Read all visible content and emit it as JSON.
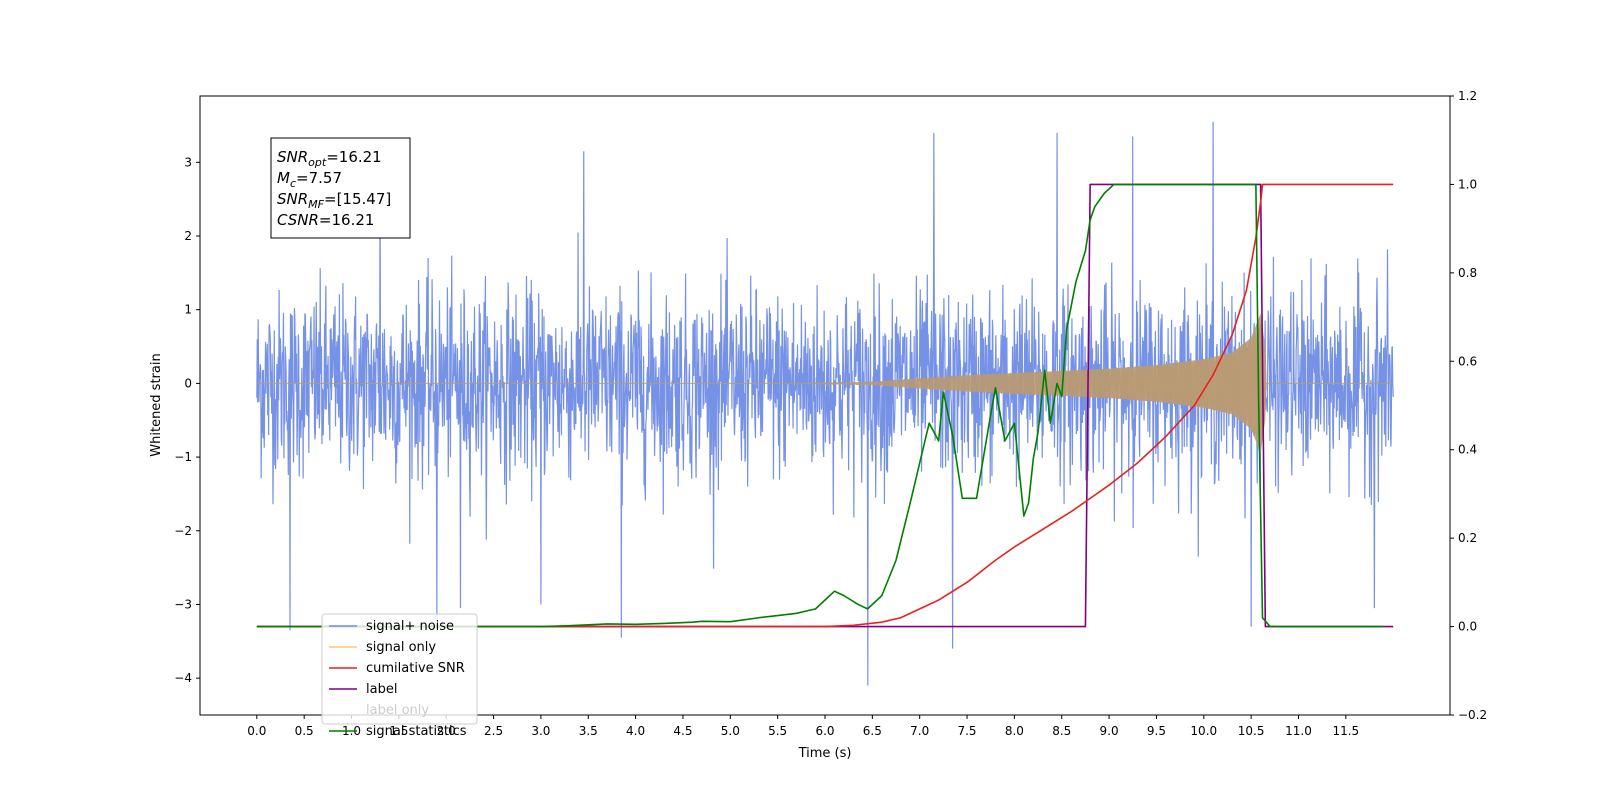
{
  "chart_data": {
    "type": "line",
    "xlabel": "Time (s)",
    "ylabel": "Whitened strain",
    "xlim": [
      -0.6,
      12.6
    ],
    "ylim": [
      -4.5,
      3.9
    ],
    "y2lim": [
      -0.2,
      1.2
    ],
    "xticks": [
      0.0,
      0.5,
      1.0,
      1.5,
      2.0,
      2.5,
      3.0,
      3.5,
      4.0,
      4.5,
      5.0,
      5.5,
      6.0,
      6.5,
      7.0,
      7.5,
      8.0,
      8.5,
      9.0,
      9.5,
      10.0,
      10.5,
      11.0,
      11.5
    ],
    "xtick_labels": [
      "0.0",
      "0.5",
      "1.0",
      "1.5",
      "2.0",
      "2.5",
      "3.0",
      "3.5",
      "4.0",
      "4.5",
      "5.0",
      "5.5",
      "6.0",
      "6.5",
      "7.0",
      "7.5",
      "8.0",
      "8.5",
      "9.0",
      "9.5",
      "10.0",
      "10.5",
      "11.0",
      "11.5"
    ],
    "yticks": [
      -4,
      -3,
      -2,
      -1,
      0,
      1,
      2,
      3
    ],
    "ytick_labels": [
      "−4",
      "−3",
      "−2",
      "−1",
      "0",
      "1",
      "2",
      "3"
    ],
    "y2ticks": [
      -0.2,
      0.0,
      0.2,
      0.4,
      0.6,
      0.8,
      1.0,
      1.2
    ],
    "y2tick_labels": [
      "−0.2",
      "0.0",
      "0.2",
      "0.4",
      "0.6",
      "0.8",
      "1.0",
      "1.2"
    ],
    "grid": false,
    "legend_position": "lower-left",
    "annotation": {
      "lines": [
        {
          "name": "SNR",
          "sub": "opt",
          "value": "=16.21"
        },
        {
          "name": "M",
          "sub": "c",
          "value": "=7.57"
        },
        {
          "name": "SNR",
          "sub": "MF",
          "value": "=[15.47]"
        },
        {
          "name": "CSNR",
          "sub": "",
          "value": "=16.21"
        }
      ]
    },
    "series": [
      {
        "name": "signal+ noise",
        "axis": "left",
        "color": "#6f8ce5",
        "kind": "noise-band",
        "x_range": [
          0.0,
          12.0
        ],
        "typical_amplitude": 1.5,
        "extreme_points": [
          {
            "x": 0.35,
            "y": -3.35
          },
          {
            "x": 1.3,
            "y": 3.1
          },
          {
            "x": 1.9,
            "y": -3.2
          },
          {
            "x": 2.15,
            "y": -3.05
          },
          {
            "x": 3.0,
            "y": -3.0
          },
          {
            "x": 3.45,
            "y": 3.15
          },
          {
            "x": 3.85,
            "y": -3.45
          },
          {
            "x": 6.45,
            "y": -4.1
          },
          {
            "x": 7.15,
            "y": 3.4
          },
          {
            "x": 7.35,
            "y": -3.6
          },
          {
            "x": 8.45,
            "y": 3.4
          },
          {
            "x": 9.25,
            "y": 3.35
          },
          {
            "x": 10.1,
            "y": 3.55
          },
          {
            "x": 10.5,
            "y": -3.3
          },
          {
            "x": 11.8,
            "y": -3.05
          }
        ]
      },
      {
        "name": "signal only",
        "axis": "left",
        "color": "#b99a72",
        "kind": "envelope",
        "envelope": {
          "x": [
            0.0,
            5.5,
            6.5,
            7.0,
            7.5,
            8.0,
            8.5,
            9.0,
            9.5,
            10.0,
            10.3,
            10.5,
            10.6,
            10.65,
            10.66,
            12.0
          ],
          "amplitude": [
            0.0,
            0.0,
            0.02,
            0.07,
            0.11,
            0.14,
            0.17,
            0.2,
            0.25,
            0.33,
            0.42,
            0.62,
            0.95,
            0.5,
            0.0,
            0.0
          ]
        }
      },
      {
        "name": "cumilative SNR",
        "axis": "right",
        "color": "#e8211e",
        "x": [
          0.0,
          6.0,
          6.3,
          6.6,
          6.8,
          7.0,
          7.2,
          7.5,
          7.8,
          8.0,
          8.3,
          8.6,
          8.8,
          9.0,
          9.3,
          9.6,
          9.9,
          10.1,
          10.3,
          10.45,
          10.55,
          10.6,
          10.62,
          12.0
        ],
        "y": [
          0.0,
          0.0,
          0.003,
          0.01,
          0.02,
          0.04,
          0.06,
          0.1,
          0.15,
          0.18,
          0.22,
          0.26,
          0.29,
          0.32,
          0.37,
          0.43,
          0.5,
          0.57,
          0.66,
          0.76,
          0.88,
          0.96,
          1.0,
          1.0
        ]
      },
      {
        "name": "label",
        "axis": "right",
        "color": "#800080",
        "x": [
          0.0,
          8.75,
          8.8,
          10.6,
          10.65,
          12.0
        ],
        "y": [
          0.0,
          0.0,
          1.0,
          1.0,
          0.0,
          0.0
        ]
      },
      {
        "name": "label only",
        "axis": "right",
        "color": "#800080",
        "x": [
          0.0,
          8.75,
          8.8,
          10.6,
          10.65,
          12.0
        ],
        "y": [
          0.0,
          0.0,
          1.0,
          1.0,
          0.0,
          0.0
        ]
      },
      {
        "name": "signal statistics",
        "axis": "right",
        "color": "#008000",
        "x": [
          0.0,
          3.0,
          3.3,
          3.5,
          3.7,
          4.0,
          4.3,
          4.6,
          4.7,
          5.0,
          5.3,
          5.5,
          5.7,
          5.9,
          6.05,
          6.1,
          6.2,
          6.35,
          6.45,
          6.6,
          6.75,
          6.9,
          7.0,
          7.1,
          7.2,
          7.25,
          7.35,
          7.45,
          7.6,
          7.75,
          7.8,
          7.9,
          8.0,
          8.1,
          8.15,
          8.2,
          8.25,
          8.32,
          8.38,
          8.45,
          8.5,
          8.55,
          8.65,
          8.75,
          8.8,
          8.85,
          8.95,
          9.05,
          9.15,
          9.3,
          10.55,
          10.58,
          10.62,
          10.7,
          11.9
        ],
        "y": [
          0.0,
          0.0,
          0.002,
          0.004,
          0.006,
          0.005,
          0.007,
          0.01,
          0.012,
          0.011,
          0.02,
          0.025,
          0.03,
          0.04,
          0.07,
          0.08,
          0.07,
          0.05,
          0.04,
          0.07,
          0.15,
          0.28,
          0.37,
          0.46,
          0.42,
          0.53,
          0.43,
          0.29,
          0.29,
          0.48,
          0.54,
          0.42,
          0.46,
          0.25,
          0.28,
          0.38,
          0.44,
          0.58,
          0.46,
          0.55,
          0.52,
          0.67,
          0.78,
          0.85,
          0.92,
          0.95,
          0.98,
          1.0,
          1.0,
          1.0,
          1.0,
          0.5,
          0.02,
          0.0,
          0.0
        ]
      }
    ]
  }
}
